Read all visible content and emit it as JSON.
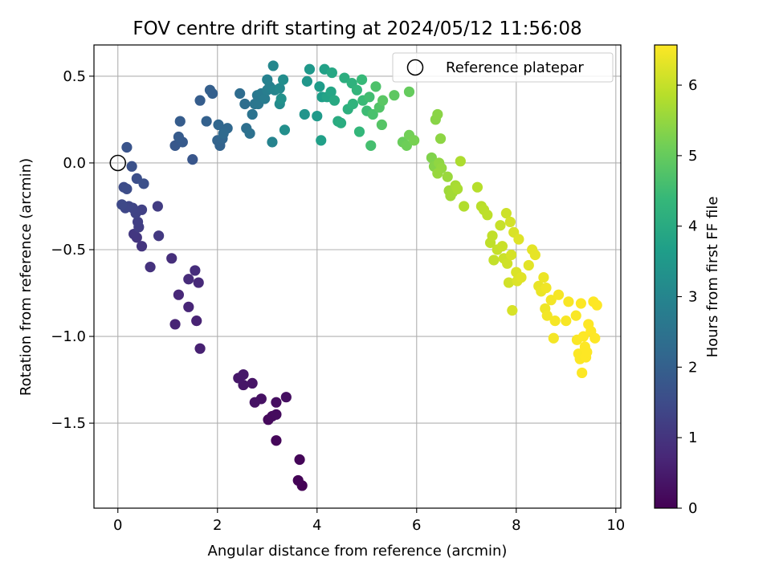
{
  "chart_data": {
    "type": "scatter",
    "title": "FOV centre drift starting at 2024/05/12 11:56:08",
    "xlabel": "Angular distance from reference (arcmin)",
    "ylabel": "Rotation from reference (arcmin)",
    "xlim": [
      -0.48,
      10.1
    ],
    "ylim": [
      -1.99,
      0.68
    ],
    "xticks": [
      0,
      2,
      4,
      6,
      8,
      10
    ],
    "xtick_labels": [
      "0",
      "2",
      "4",
      "6",
      "8",
      "10"
    ],
    "yticks": [
      0.5,
      0.0,
      -0.5,
      -1.0,
      -1.5
    ],
    "ytick_labels": [
      "0.5",
      "0.0",
      "−0.5",
      "−1.0",
      "−1.5"
    ],
    "grid": true,
    "legend": {
      "position": "top-right",
      "label": "Reference platepar"
    },
    "reference_point": {
      "x": 0,
      "y": 0
    },
    "colorbar": {
      "label": "Hours from first FF file",
      "colormap": "viridis",
      "range": [
        0,
        6.57
      ],
      "ticks": [
        0,
        1,
        2,
        3,
        4,
        5,
        6
      ],
      "tick_labels": [
        "0",
        "1",
        "2",
        "3",
        "4",
        "5",
        "6"
      ]
    },
    "color_stops": [
      "#440154",
      "#482878",
      "#3e4a89",
      "#31688e",
      "#26828e",
      "#1f9e89",
      "#35b779",
      "#6ece58",
      "#b5de2b",
      "#fde725"
    ],
    "points": [
      [
        3.7,
        -1.86,
        0.02
      ],
      [
        3.62,
        -1.83,
        0.05
      ],
      [
        3.65,
        -1.71,
        0.08
      ],
      [
        3.18,
        -1.6,
        0.12
      ],
      [
        3.02,
        -1.48,
        0.15
      ],
      [
        3.1,
        -1.46,
        0.18
      ],
      [
        3.18,
        -1.45,
        0.21
      ],
      [
        3.18,
        -1.38,
        0.24
      ],
      [
        3.38,
        -1.35,
        0.27
      ],
      [
        2.88,
        -1.36,
        0.3
      ],
      [
        2.75,
        -1.38,
        0.33
      ],
      [
        2.7,
        -1.27,
        0.36
      ],
      [
        2.52,
        -1.28,
        0.39
      ],
      [
        2.42,
        -1.24,
        0.42
      ],
      [
        2.52,
        -1.22,
        0.45
      ],
      [
        1.65,
        -1.07,
        0.6
      ],
      [
        1.58,
        -0.91,
        0.64
      ],
      [
        1.15,
        -0.93,
        0.67
      ],
      [
        1.42,
        -0.83,
        0.7
      ],
      [
        1.22,
        -0.76,
        0.74
      ],
      [
        1.62,
        -0.69,
        0.78
      ],
      [
        1.42,
        -0.67,
        0.81
      ],
      [
        1.55,
        -0.62,
        0.84
      ],
      [
        1.08,
        -0.55,
        0.88
      ],
      [
        0.65,
        -0.6,
        0.95
      ],
      [
        0.48,
        -0.48,
        1.0
      ],
      [
        0.38,
        -0.43,
        1.03
      ],
      [
        0.32,
        -0.41,
        1.06
      ],
      [
        0.82,
        -0.42,
        1.1
      ],
      [
        0.8,
        -0.25,
        1.15
      ],
      [
        0.42,
        -0.37,
        1.2
      ],
      [
        0.4,
        -0.34,
        1.23
      ],
      [
        0.48,
        -0.27,
        1.27
      ],
      [
        0.36,
        -0.29,
        1.3
      ],
      [
        0.3,
        -0.26,
        1.33
      ],
      [
        0.22,
        -0.25,
        1.37
      ],
      [
        0.15,
        -0.26,
        1.4
      ],
      [
        0.08,
        -0.24,
        1.43
      ],
      [
        0.12,
        -0.14,
        1.5
      ],
      [
        0.18,
        -0.15,
        1.53
      ],
      [
        0.38,
        -0.09,
        1.57
      ],
      [
        0.52,
        -0.12,
        1.6
      ],
      [
        0.28,
        -0.02,
        1.63
      ],
      [
        0.18,
        0.09,
        1.7
      ],
      [
        1.5,
        0.02,
        1.75
      ],
      [
        1.15,
        0.1,
        1.8
      ],
      [
        1.3,
        0.12,
        1.84
      ],
      [
        1.22,
        0.15,
        1.87
      ],
      [
        1.25,
        0.24,
        1.9
      ],
      [
        1.65,
        0.36,
        1.93
      ],
      [
        1.85,
        0.42,
        1.97
      ],
      [
        1.9,
        0.4,
        2.0
      ],
      [
        1.78,
        0.24,
        2.03
      ],
      [
        2.05,
        0.1,
        2.07
      ],
      [
        2.0,
        0.13,
        2.1
      ],
      [
        2.1,
        0.14,
        2.13
      ],
      [
        2.02,
        0.22,
        2.17
      ],
      [
        2.2,
        0.2,
        2.2
      ],
      [
        2.12,
        0.17,
        2.25
      ],
      [
        2.45,
        0.4,
        2.3
      ],
      [
        2.55,
        0.34,
        2.35
      ],
      [
        2.58,
        0.2,
        2.4
      ],
      [
        2.65,
        0.17,
        2.45
      ],
      [
        2.7,
        0.28,
        2.5
      ],
      [
        2.75,
        0.34,
        2.55
      ],
      [
        2.82,
        0.34,
        2.6
      ],
      [
        2.8,
        0.39,
        2.65
      ],
      [
        2.88,
        0.4,
        2.7
      ],
      [
        2.95,
        0.37,
        2.75
      ],
      [
        3.0,
        0.42,
        2.8
      ],
      [
        3.05,
        0.44,
        2.85
      ],
      [
        3.0,
        0.48,
        2.9
      ],
      [
        3.1,
        0.12,
        2.95
      ],
      [
        3.15,
        0.42,
        3.0
      ],
      [
        3.12,
        0.56,
        3.05
      ],
      [
        3.25,
        0.43,
        3.1
      ],
      [
        3.25,
        0.34,
        3.15
      ],
      [
        3.32,
        0.48,
        3.2
      ],
      [
        3.35,
        0.19,
        3.25
      ],
      [
        3.28,
        0.37,
        3.3
      ],
      [
        3.75,
        0.28,
        3.4
      ],
      [
        3.8,
        0.47,
        3.45
      ],
      [
        3.85,
        0.54,
        3.5
      ],
      [
        4.0,
        0.27,
        3.55
      ],
      [
        4.05,
        0.44,
        3.6
      ],
      [
        4.1,
        0.38,
        3.65
      ],
      [
        4.08,
        0.13,
        3.7
      ],
      [
        4.15,
        0.54,
        3.75
      ],
      [
        4.2,
        0.38,
        3.8
      ],
      [
        4.28,
        0.41,
        3.85
      ],
      [
        4.3,
        0.52,
        3.9
      ],
      [
        4.35,
        0.36,
        3.95
      ],
      [
        4.42,
        0.24,
        4.0
      ],
      [
        4.48,
        0.23,
        4.05
      ],
      [
        4.55,
        0.49,
        4.1
      ],
      [
        4.62,
        0.31,
        4.15
      ],
      [
        4.7,
        0.46,
        4.2
      ],
      [
        4.72,
        0.34,
        4.25
      ],
      [
        4.8,
        0.42,
        4.3
      ],
      [
        4.85,
        0.18,
        4.35
      ],
      [
        4.9,
        0.48,
        4.4
      ],
      [
        4.92,
        0.36,
        4.45
      ],
      [
        5.0,
        0.3,
        4.5
      ],
      [
        5.05,
        0.38,
        4.55
      ],
      [
        5.08,
        0.1,
        4.6
      ],
      [
        5.12,
        0.28,
        4.65
      ],
      [
        5.18,
        0.44,
        4.7
      ],
      [
        5.25,
        0.32,
        4.75
      ],
      [
        5.3,
        0.22,
        4.8
      ],
      [
        5.32,
        0.36,
        4.85
      ],
      [
        5.55,
        0.39,
        4.9
      ],
      [
        5.85,
        0.41,
        5.0
      ],
      [
        5.72,
        0.12,
        5.05
      ],
      [
        5.8,
        0.1,
        5.1
      ],
      [
        5.85,
        0.16,
        5.15
      ],
      [
        5.95,
        0.13,
        5.2
      ],
      [
        6.3,
        0.03,
        5.3
      ],
      [
        6.35,
        -0.02,
        5.35
      ],
      [
        6.38,
        0.25,
        5.38
      ],
      [
        6.42,
        0.28,
        5.4
      ],
      [
        6.48,
        0.14,
        5.43
      ],
      [
        6.45,
        0.0,
        5.46
      ],
      [
        6.5,
        -0.03,
        5.5
      ],
      [
        6.42,
        -0.06,
        5.53
      ],
      [
        6.62,
        -0.08,
        5.56
      ],
      [
        6.65,
        -0.16,
        5.6
      ],
      [
        6.68,
        -0.19,
        5.63
      ],
      [
        6.72,
        -0.17,
        5.66
      ],
      [
        6.78,
        -0.13,
        5.7
      ],
      [
        6.82,
        -0.15,
        5.73
      ],
      [
        6.88,
        0.01,
        5.76
      ],
      [
        6.95,
        -0.25,
        5.8
      ],
      [
        7.22,
        -0.14,
        5.85
      ],
      [
        7.3,
        -0.25,
        5.88
      ],
      [
        7.35,
        -0.27,
        5.9
      ],
      [
        7.42,
        -0.3,
        5.92
      ],
      [
        7.48,
        -0.46,
        5.94
      ],
      [
        7.52,
        -0.42,
        5.96
      ],
      [
        7.55,
        -0.56,
        5.98
      ],
      [
        7.62,
        -0.5,
        6.0
      ],
      [
        7.68,
        -0.36,
        6.02
      ],
      [
        7.72,
        -0.48,
        6.04
      ],
      [
        7.75,
        -0.55,
        6.06
      ],
      [
        7.8,
        -0.29,
        6.08
      ],
      [
        7.82,
        -0.58,
        6.1
      ],
      [
        7.85,
        -0.69,
        6.12
      ],
      [
        7.88,
        -0.34,
        6.14
      ],
      [
        7.9,
        -0.53,
        6.16
      ],
      [
        7.92,
        -0.85,
        6.18
      ],
      [
        7.95,
        -0.4,
        6.2
      ],
      [
        8.0,
        -0.63,
        6.22
      ],
      [
        8.02,
        -0.68,
        6.24
      ],
      [
        8.05,
        -0.44,
        6.26
      ],
      [
        8.1,
        -0.66,
        6.28
      ],
      [
        8.25,
        -0.59,
        6.3
      ],
      [
        8.32,
        -0.5,
        6.32
      ],
      [
        8.38,
        -0.53,
        6.34
      ],
      [
        8.45,
        -0.71,
        6.36
      ],
      [
        8.5,
        -0.74,
        6.38
      ],
      [
        8.55,
        -0.66,
        6.4
      ],
      [
        8.58,
        -0.84,
        6.42
      ],
      [
        8.6,
        -0.72,
        6.44
      ],
      [
        8.62,
        -0.88,
        6.46
      ],
      [
        8.7,
        -0.79,
        6.47
      ],
      [
        8.75,
        -1.01,
        6.48
      ],
      [
        8.78,
        -0.91,
        6.49
      ],
      [
        8.85,
        -0.76,
        6.5
      ],
      [
        9.0,
        -0.91,
        6.51
      ],
      [
        9.05,
        -0.8,
        6.52
      ],
      [
        9.2,
        -0.88,
        6.53
      ],
      [
        9.22,
        -1.02,
        6.54
      ],
      [
        9.25,
        -1.1,
        6.55
      ],
      [
        9.28,
        -1.13,
        6.55
      ],
      [
        9.3,
        -0.81,
        6.56
      ],
      [
        9.32,
        -1.21,
        6.56
      ],
      [
        9.35,
        -1.0,
        6.57
      ],
      [
        9.38,
        -1.06,
        6.57
      ],
      [
        9.4,
        -1.12,
        6.57
      ],
      [
        9.42,
        -1.09,
        6.57
      ],
      [
        9.45,
        -0.93,
        6.57
      ],
      [
        9.5,
        -0.97,
        6.57
      ],
      [
        9.55,
        -0.8,
        6.57
      ],
      [
        9.58,
        -1.01,
        6.57
      ],
      [
        9.62,
        -0.82,
        6.57
      ]
    ]
  }
}
